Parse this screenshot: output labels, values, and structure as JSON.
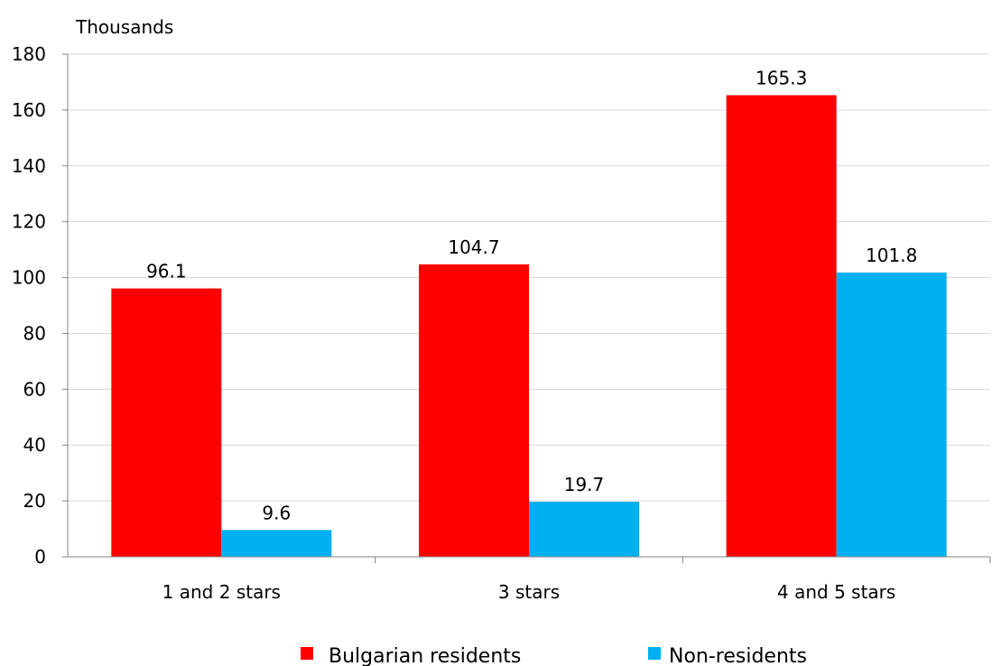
{
  "chart_data": {
    "type": "bar",
    "unit_label": "Thousands",
    "categories": [
      "1 and 2 stars",
      "3 stars",
      "4 and 5 stars"
    ],
    "series": [
      {
        "name": "Bulgarian residents",
        "values": [
          96.1,
          104.7,
          165.3
        ],
        "color": "#ff0000"
      },
      {
        "name": "Non-residents",
        "values": [
          9.6,
          19.7,
          101.8
        ],
        "color": "#00b0f0"
      }
    ],
    "data_labels": [
      [
        "96.1",
        "104.7",
        "165.3"
      ],
      [
        "9.6",
        "19.7",
        "101.8"
      ]
    ],
    "y_ticks": [
      0,
      20,
      40,
      60,
      80,
      100,
      120,
      140,
      160,
      180
    ],
    "ylim": [
      0,
      180
    ],
    "grid": true,
    "legend_position": "bottom",
    "gridline_color": "#d9d9d9"
  }
}
